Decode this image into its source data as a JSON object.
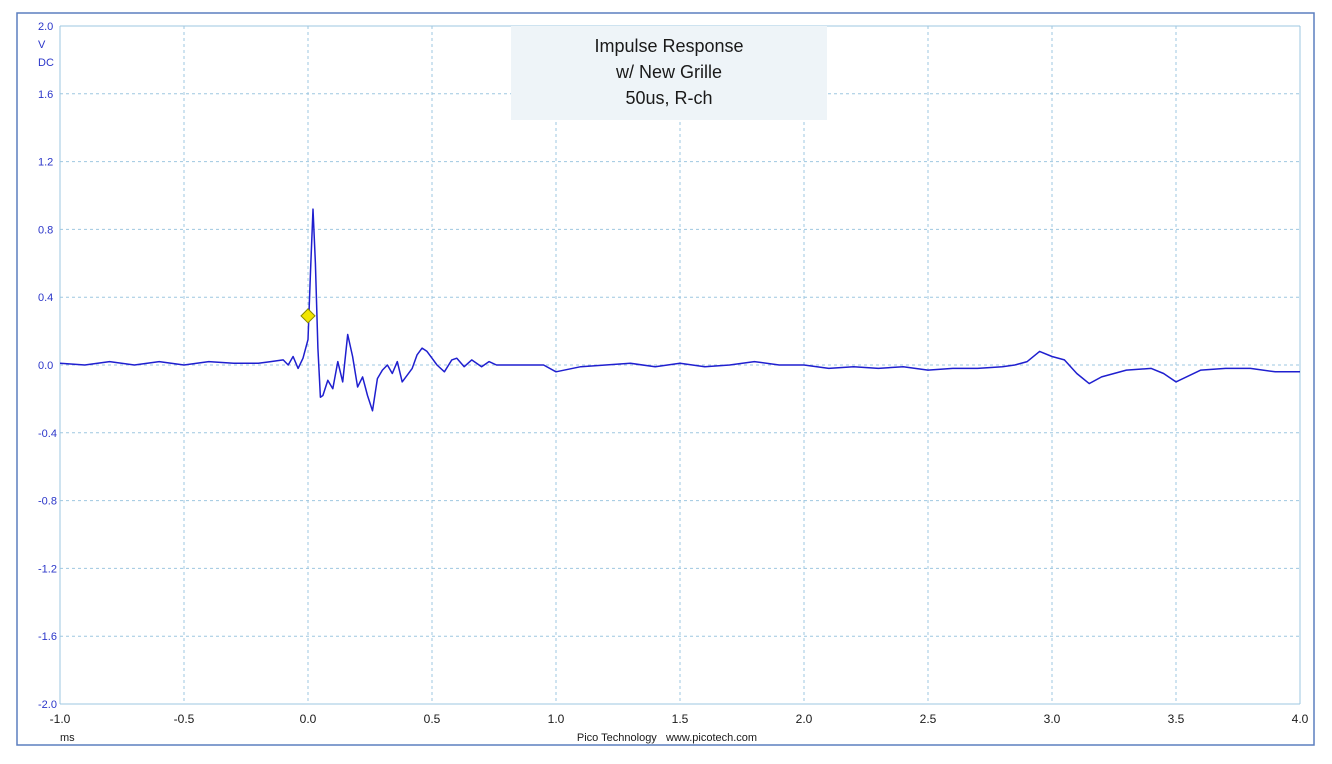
{
  "chart_data": {
    "type": "line",
    "title": [
      "Impulse Response",
      "w/ New Grille",
      "50us, R-ch"
    ],
    "y_unit": [
      "V",
      "DC"
    ],
    "x_unit": "ms",
    "footer": "Pico Technology   www.picotech.com",
    "xlim": [
      -1.0,
      4.0
    ],
    "ylim": [
      -2.0,
      2.0
    ],
    "x_ticks": [
      "-1.0",
      "-0.5",
      "0.0",
      "0.5",
      "1.0",
      "1.5",
      "2.0",
      "2.5",
      "3.0",
      "3.5",
      "4.0"
    ],
    "y_ticks": [
      "2.0",
      "1.6",
      "1.2",
      "0.8",
      "0.4",
      "0.0",
      "-0.4",
      "-0.8",
      "-1.2",
      "-1.6",
      "-2.0"
    ],
    "grid": true,
    "colors": {
      "trace": "#1f1fcf",
      "grid": "#9ec7e0",
      "frame": "#5b7fbf",
      "marker": "#f2e600",
      "title_bg": "#eef4f8"
    },
    "marker": {
      "x": 0.0,
      "y": 0.29,
      "shape": "diamond"
    },
    "series": [
      {
        "x": [
          -1.0,
          -0.9,
          -0.8,
          -0.7,
          -0.6,
          -0.5,
          -0.4,
          -0.3,
          -0.2,
          -0.15,
          -0.1,
          -0.08,
          -0.06,
          -0.04,
          -0.02,
          0.0,
          0.01,
          0.02,
          0.03,
          0.04,
          0.05,
          0.06,
          0.08,
          0.1,
          0.12,
          0.14,
          0.16,
          0.18,
          0.2,
          0.22,
          0.24,
          0.26,
          0.28,
          0.3,
          0.32,
          0.34,
          0.36,
          0.38,
          0.4,
          0.42,
          0.44,
          0.46,
          0.48,
          0.5,
          0.52,
          0.55,
          0.58,
          0.6,
          0.63,
          0.66,
          0.7,
          0.73,
          0.76,
          0.8,
          0.85,
          0.9,
          0.95,
          1.0,
          1.1,
          1.2,
          1.3,
          1.4,
          1.5,
          1.6,
          1.7,
          1.8,
          1.9,
          2.0,
          2.1,
          2.2,
          2.3,
          2.4,
          2.5,
          2.6,
          2.7,
          2.8,
          2.85,
          2.9,
          2.95,
          3.0,
          3.05,
          3.1,
          3.15,
          3.2,
          3.3,
          3.4,
          3.45,
          3.5,
          3.6,
          3.7,
          3.8,
          3.9,
          4.0
        ],
        "y": [
          0.01,
          0.0,
          0.02,
          0.0,
          0.02,
          0.0,
          0.02,
          0.01,
          0.01,
          0.02,
          0.03,
          0.0,
          0.05,
          -0.02,
          0.04,
          0.15,
          0.55,
          0.92,
          0.6,
          0.1,
          -0.19,
          -0.18,
          -0.09,
          -0.14,
          0.02,
          -0.1,
          0.18,
          0.05,
          -0.13,
          -0.07,
          -0.18,
          -0.27,
          -0.08,
          -0.03,
          0.0,
          -0.05,
          0.02,
          -0.1,
          -0.06,
          -0.02,
          0.06,
          0.1,
          0.08,
          0.04,
          0.0,
          -0.04,
          0.03,
          0.04,
          -0.01,
          0.03,
          -0.01,
          0.02,
          0.0,
          0.0,
          0.0,
          0.0,
          0.0,
          -0.04,
          -0.01,
          0.0,
          0.01,
          -0.01,
          0.01,
          -0.01,
          0.0,
          0.02,
          0.0,
          0.0,
          -0.02,
          -0.01,
          -0.02,
          -0.01,
          -0.03,
          -0.02,
          -0.02,
          -0.01,
          0.0,
          0.02,
          0.08,
          0.05,
          0.03,
          -0.05,
          -0.11,
          -0.07,
          -0.03,
          -0.02,
          -0.05,
          -0.1,
          -0.03,
          -0.02,
          -0.02,
          -0.04,
          -0.04
        ]
      }
    ]
  }
}
